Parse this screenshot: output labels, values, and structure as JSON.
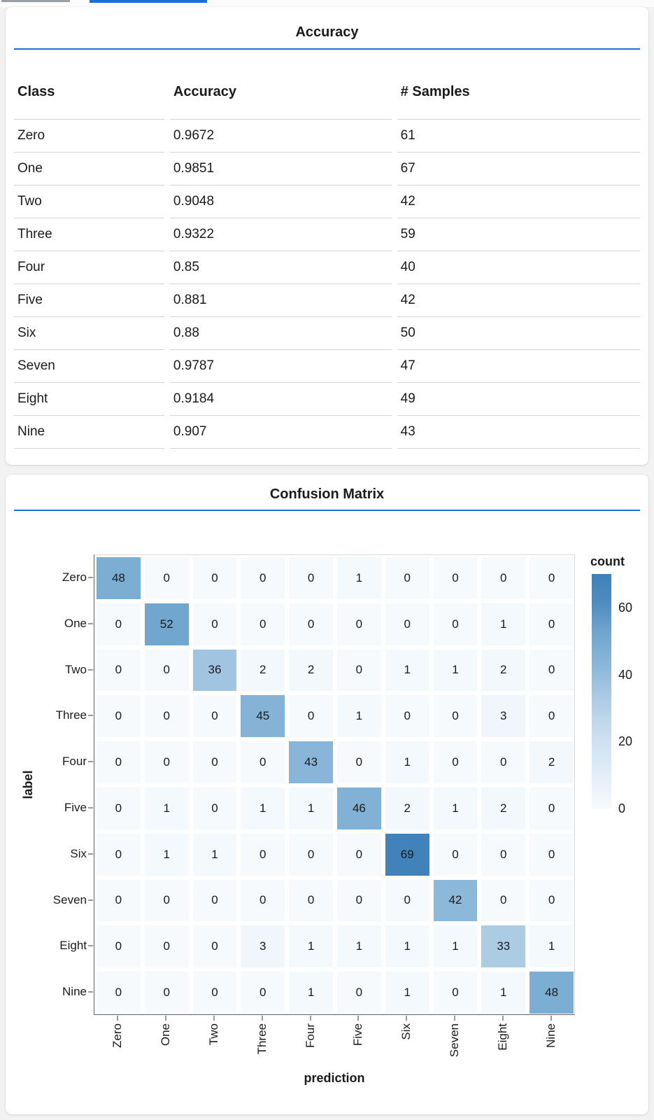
{
  "colors": {
    "accent_blue": "#1a6fe0",
    "top_bar_gray": "#9aa0a6",
    "page_bg": "#f2f2f3",
    "card_bg": "#ffffff",
    "table_border": "#d4d4d4",
    "text": "#1b1b1b",
    "axis_domain": "#5f5f5f",
    "view_border": "#d9d9d9",
    "tick": "#9a9a9a",
    "heat_ramp": [
      [
        0.0,
        "#f6fafd"
      ],
      [
        0.15,
        "#e1edf8"
      ],
      [
        0.3,
        "#cce0f1"
      ],
      [
        0.47,
        "#accce4"
      ],
      [
        0.6,
        "#8cb8d9"
      ],
      [
        0.75,
        "#70a6ce"
      ],
      [
        0.87,
        "#508dc0"
      ],
      [
        1.0,
        "#3e81b8"
      ]
    ]
  },
  "chart_data": [
    {
      "type": "table",
      "title": "Accuracy",
      "columns": [
        "Class",
        "Accuracy",
        "# Samples"
      ],
      "rows": [
        [
          "Zero",
          "0.9672",
          "61"
        ],
        [
          "One",
          "0.9851",
          "67"
        ],
        [
          "Two",
          "0.9048",
          "42"
        ],
        [
          "Three",
          "0.9322",
          "59"
        ],
        [
          "Four",
          "0.85",
          "40"
        ],
        [
          "Five",
          "0.881",
          "42"
        ],
        [
          "Six",
          "0.88",
          "50"
        ],
        [
          "Seven",
          "0.9787",
          "47"
        ],
        [
          "Eight",
          "0.9184",
          "49"
        ],
        [
          "Nine",
          "0.907",
          "43"
        ]
      ]
    },
    {
      "type": "heatmap",
      "title": "Confusion Matrix",
      "xlabel": "prediction",
      "ylabel": "label",
      "x_categories": [
        "Zero",
        "One",
        "Two",
        "Three",
        "Four",
        "Five",
        "Six",
        "Seven",
        "Eight",
        "Nine"
      ],
      "y_categories": [
        "Zero",
        "One",
        "Two",
        "Three",
        "Four",
        "Five",
        "Six",
        "Seven",
        "Eight",
        "Nine"
      ],
      "values": [
        [
          48,
          0,
          0,
          0,
          0,
          1,
          0,
          0,
          0,
          0
        ],
        [
          0,
          52,
          0,
          0,
          0,
          0,
          0,
          0,
          1,
          0
        ],
        [
          0,
          0,
          36,
          2,
          2,
          0,
          1,
          1,
          2,
          0
        ],
        [
          0,
          0,
          0,
          45,
          0,
          1,
          0,
          0,
          3,
          0
        ],
        [
          0,
          0,
          0,
          0,
          43,
          0,
          1,
          0,
          0,
          2
        ],
        [
          0,
          1,
          0,
          1,
          1,
          46,
          2,
          1,
          2,
          0
        ],
        [
          0,
          1,
          1,
          0,
          0,
          0,
          69,
          0,
          0,
          0
        ],
        [
          0,
          0,
          0,
          0,
          0,
          0,
          0,
          42,
          0,
          0
        ],
        [
          0,
          0,
          0,
          3,
          1,
          1,
          1,
          1,
          33,
          1
        ],
        [
          0,
          0,
          0,
          0,
          1,
          0,
          1,
          0,
          1,
          48
        ]
      ],
      "color_domain": [
        0,
        70
      ],
      "legend": {
        "title": "count",
        "ticks": [
          60,
          40,
          20,
          0
        ],
        "position": "right"
      },
      "grid": false
    }
  ]
}
